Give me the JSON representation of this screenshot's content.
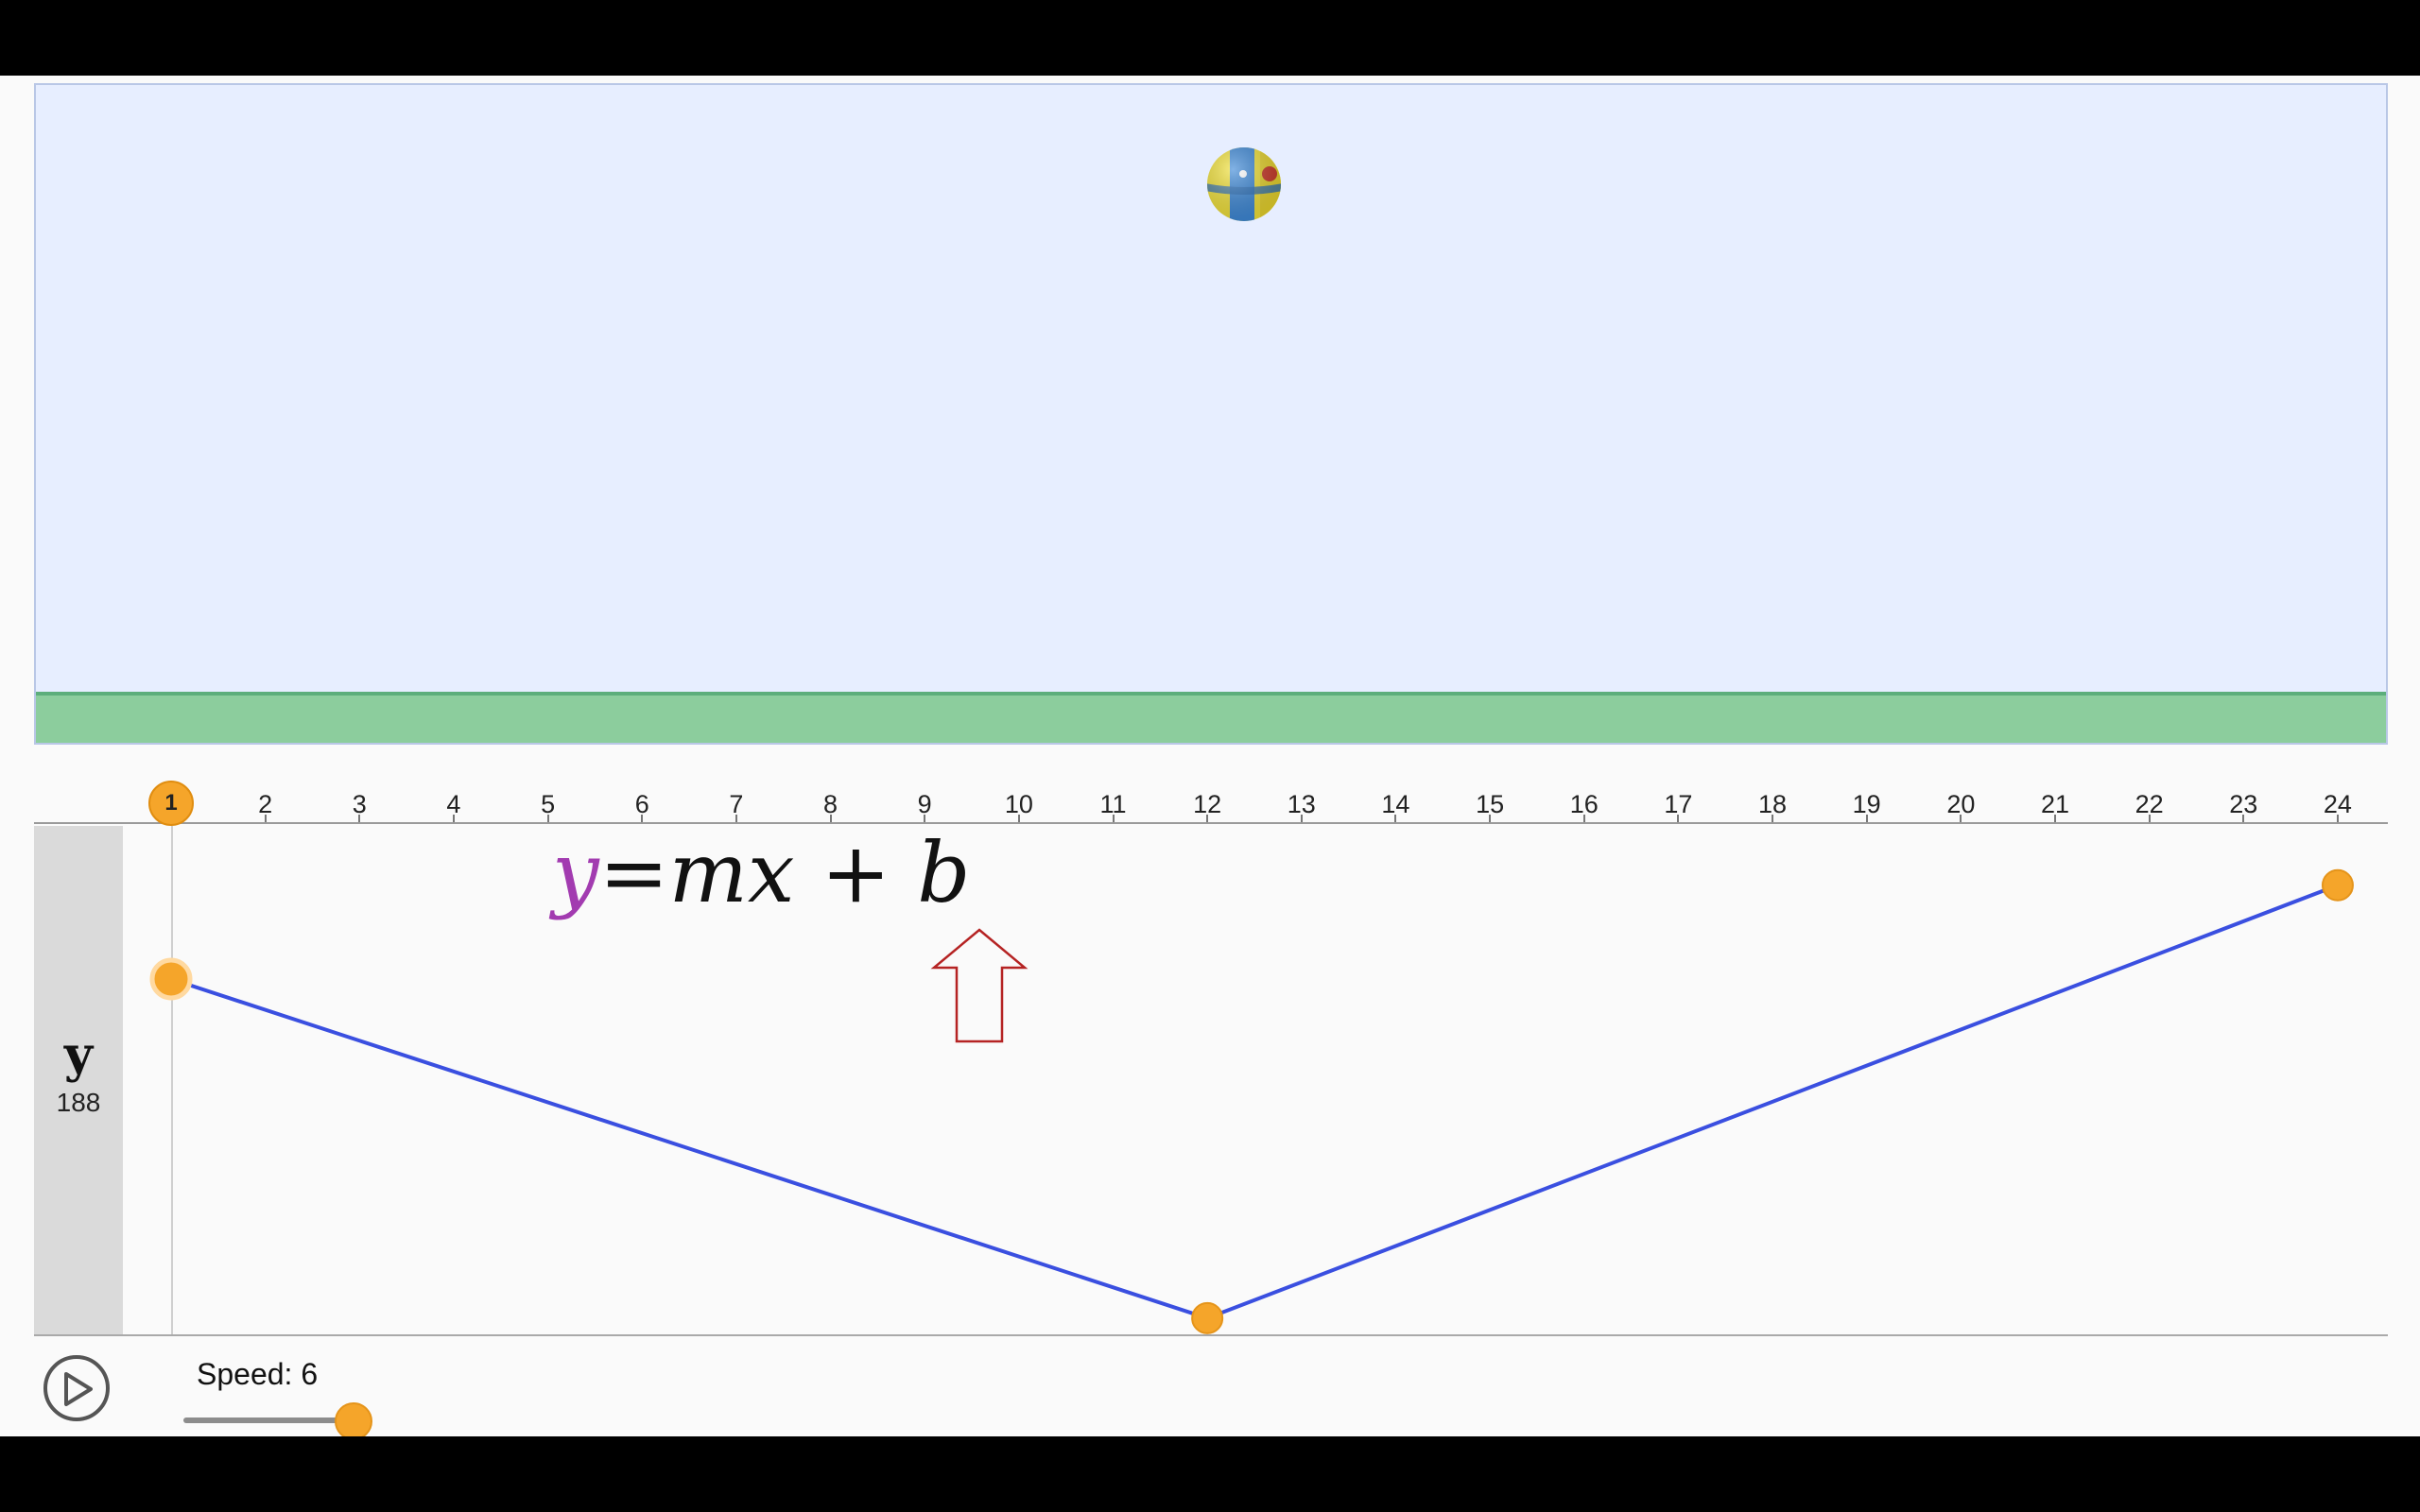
{
  "stage": {
    "background_color": "#e7eeff",
    "ground_color": "#8ccd9d",
    "ball": {
      "icon": "beach-ball-icon",
      "frame": 12
    }
  },
  "timeline": {
    "frames": [
      "1",
      "2",
      "3",
      "4",
      "5",
      "6",
      "7",
      "8",
      "9",
      "10",
      "11",
      "12",
      "13",
      "14",
      "15",
      "16",
      "17",
      "18",
      "19",
      "20",
      "21",
      "22",
      "23",
      "24"
    ],
    "current_frame": "1",
    "accent_color": "#f5a52a"
  },
  "track": {
    "property": "y",
    "value": "188",
    "line_color": "#3a4fe0",
    "keyframes": [
      {
        "frame": 1,
        "y": 188
      },
      {
        "frame": 12,
        "y": 0
      },
      {
        "frame": 24,
        "y": 240
      }
    ],
    "y_range": [
      -10,
      265
    ]
  },
  "annotation": {
    "equation_parts": [
      "y",
      "=mx",
      " + b"
    ],
    "colors": [
      "#a23bb0",
      "#111111",
      "#111111"
    ],
    "arrow_icon": "up-arrow-icon",
    "arrow_color": "#b52323"
  },
  "controls": {
    "play_icon": "play-icon",
    "speed_label": "Speed: 6",
    "speed_value": 6,
    "speed_max": 6
  }
}
